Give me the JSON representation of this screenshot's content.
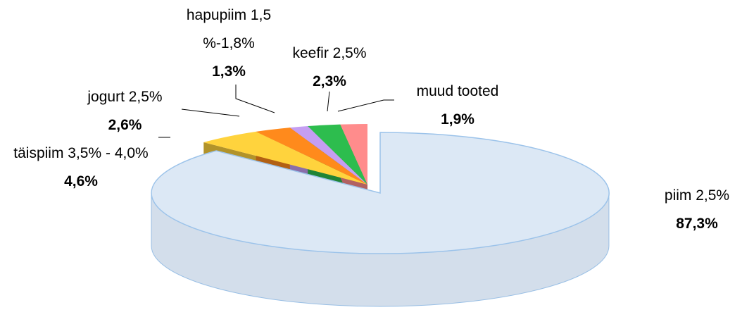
{
  "chart_data": {
    "type": "pie3d",
    "categories": [
      "piim 2,5%",
      "täispiim 3,5% - 4,0%",
      "jogurt 2,5%",
      "hapupiim 1,5 %-1,8%",
      "keefir 2,5%",
      "muud tooted"
    ],
    "values": [
      87.3,
      4.6,
      2.6,
      1.3,
      2.3,
      1.9
    ],
    "value_labels": [
      "87,3%",
      "4,6%",
      "2,6%",
      "1,3%",
      "2,3%",
      "1,9%"
    ],
    "colors": [
      "#dce8f5",
      "#ffd33d",
      "#ff8a1c",
      "#c59ef2",
      "#2dbd4e",
      "#ff8c8c"
    ]
  }
}
